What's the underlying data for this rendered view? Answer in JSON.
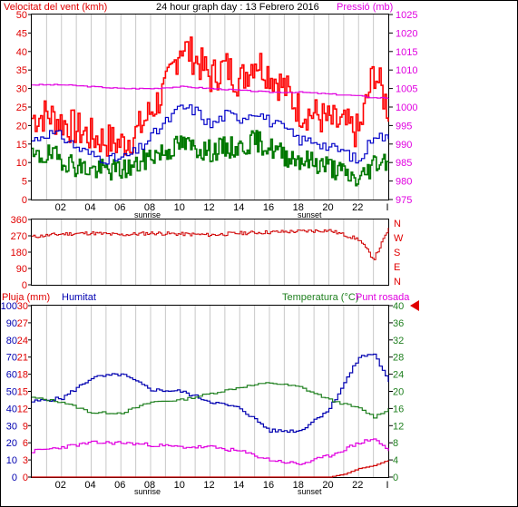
{
  "title": "24 hour graph day : 13 Febrero 2016",
  "colors": {
    "gust": "#ff0000",
    "wind": "#0000c8",
    "avg": "#007800",
    "pressure": "#e000e0",
    "direction": "#d00000",
    "humidity": "#0000b0",
    "temperature": "#208020",
    "dewpoint": "#e000e0",
    "rain": "#d00000",
    "grid": "#c8c8c8",
    "marker": "#e00000"
  },
  "x_ticks": [
    "02",
    "04",
    "06",
    "08",
    "10",
    "12",
    "14",
    "16",
    "18",
    "20",
    "22",
    "I"
  ],
  "x_annotations": {
    "sunrise": "sunrise",
    "sunset": "sunset"
  },
  "chart_data": [
    {
      "type": "line",
      "title": "24 hour graph day : 13 Febrero 2016",
      "ylabel_left": "Velocitat del vent (kmh)",
      "ylabel_right": "Pressió (mb)",
      "y_ticks_left": [
        "0",
        "5",
        "10",
        "15",
        "20",
        "25",
        "30",
        "35",
        "40",
        "45",
        "50"
      ],
      "y_ticks_right": [
        "975",
        "980",
        "985",
        "990",
        "995",
        "1000",
        "1005",
        "1010",
        "1015",
        "1020",
        "1025"
      ],
      "ylim_left": [
        0,
        50
      ],
      "ylim_right": [
        975,
        1025
      ],
      "series": [
        {
          "axis": "left",
          "color_key": "gust",
          "x": [
            0,
            1,
            2,
            3,
            4,
            5,
            6,
            7,
            8,
            9,
            10,
            11,
            12,
            13,
            14,
            15,
            16,
            17,
            18,
            19,
            20,
            21,
            22,
            23,
            24
          ],
          "y": [
            22,
            23,
            21,
            19,
            17,
            16,
            15,
            18,
            24,
            30,
            42,
            38,
            33,
            36,
            32,
            38,
            34,
            30,
            24,
            23,
            21,
            20,
            18,
            35,
            24
          ]
        },
        {
          "axis": "left",
          "color_key": "wind",
          "x": [
            0,
            1,
            2,
            3,
            4,
            5,
            6,
            7,
            8,
            9,
            10,
            11,
            12,
            13,
            14,
            15,
            16,
            17,
            18,
            19,
            20,
            21,
            22,
            23,
            24
          ],
          "y": [
            16,
            18,
            17,
            14,
            12,
            11,
            11,
            13,
            17,
            21,
            25,
            24,
            20,
            23,
            22,
            24,
            21,
            19,
            16,
            16,
            14,
            13,
            10,
            18,
            16
          ]
        },
        {
          "axis": "left",
          "color_key": "avg",
          "x": [
            0,
            1,
            2,
            3,
            4,
            5,
            6,
            7,
            8,
            9,
            10,
            11,
            12,
            13,
            14,
            15,
            16,
            17,
            18,
            19,
            20,
            21,
            22,
            23,
            24
          ],
          "y": [
            11,
            12,
            11,
            9,
            8,
            8,
            8,
            9,
            12,
            13,
            15,
            14,
            13,
            14,
            14,
            16,
            14,
            12,
            11,
            10,
            9,
            7,
            5,
            10,
            11
          ]
        },
        {
          "axis": "right",
          "color_key": "pressure",
          "x": [
            0,
            2,
            4,
            6,
            8,
            10,
            12,
            14,
            16,
            18,
            20,
            22,
            23,
            24
          ],
          "y": [
            1006,
            1006,
            1005.5,
            1005,
            1005,
            1005.5,
            1005,
            1004.5,
            1004,
            1004,
            1003.5,
            1003,
            1002.5,
            1002.5
          ]
        }
      ]
    },
    {
      "type": "line",
      "ylim": [
        0,
        360
      ],
      "y_ticks": [
        "0",
        "90",
        "180",
        "270",
        "360"
      ],
      "direction_labels": [
        "N",
        "W",
        "S",
        "E",
        "N"
      ],
      "series": [
        {
          "color_key": "direction",
          "x": [
            0,
            2,
            4,
            6,
            8,
            10,
            12,
            14,
            16,
            18,
            20,
            22,
            23,
            24
          ],
          "y": [
            265,
            280,
            285,
            275,
            285,
            280,
            275,
            285,
            290,
            295,
            300,
            250,
            140,
            310
          ]
        }
      ]
    },
    {
      "type": "line",
      "ylabel_left_outer": "Pluja (mm)",
      "ylabel_left_inner": "Humitat",
      "ylabel_right": "Temperatura (°C)",
      "ylabel_right_extra": "Punt rosada",
      "y_ticks_humidity": [
        "0",
        "10",
        "20",
        "30",
        "40",
        "50",
        "60",
        "70",
        "80",
        "90",
        "100"
      ],
      "y_ticks_rain": [
        "0",
        "3",
        "6",
        "9",
        "12",
        "15",
        "18",
        "21",
        "24",
        "27",
        "30"
      ],
      "y_ticks_temp": [
        "0",
        "4",
        "8",
        "12",
        "16",
        "20",
        "24",
        "28",
        "32",
        "36",
        "40"
      ],
      "ylim_temp": [
        0,
        40
      ],
      "ylim_humidity": [
        0,
        100
      ],
      "ylim_rain": [
        0,
        30
      ],
      "series": [
        {
          "axis": "humidity",
          "color_key": "humidity",
          "x": [
            0,
            2,
            4,
            6,
            8,
            10,
            12,
            14,
            16,
            18,
            20,
            22,
            23,
            24
          ],
          "y": [
            44,
            46,
            58,
            60,
            51,
            50,
            44,
            40,
            27,
            27,
            40,
            70,
            72,
            55
          ]
        },
        {
          "axis": "temp",
          "color_key": "temperature",
          "x": [
            0,
            2,
            4,
            6,
            8,
            10,
            12,
            14,
            16,
            18,
            20,
            22,
            23,
            24
          ],
          "y": [
            18.5,
            17.5,
            15,
            15,
            17.5,
            18,
            19.5,
            21,
            22,
            21,
            18,
            16,
            14,
            16
          ]
        },
        {
          "axis": "temp",
          "color_key": "dewpoint",
          "x": [
            0,
            2,
            4,
            6,
            8,
            10,
            12,
            14,
            16,
            18,
            20,
            22,
            23,
            24
          ],
          "y": [
            6,
            7,
            8,
            8,
            7.5,
            7,
            7,
            6,
            4,
            3,
            5,
            8,
            9,
            6
          ]
        },
        {
          "axis": "rain",
          "color_key": "rain",
          "x": [
            0,
            2,
            4,
            6,
            8,
            10,
            12,
            14,
            16,
            18,
            20,
            21,
            22,
            23,
            24
          ],
          "y": [
            0,
            0,
            0,
            0,
            0,
            0,
            0,
            0,
            0,
            0,
            0,
            0.5,
            1.5,
            2,
            3
          ]
        }
      ],
      "marker_value_temp": 40
    }
  ]
}
